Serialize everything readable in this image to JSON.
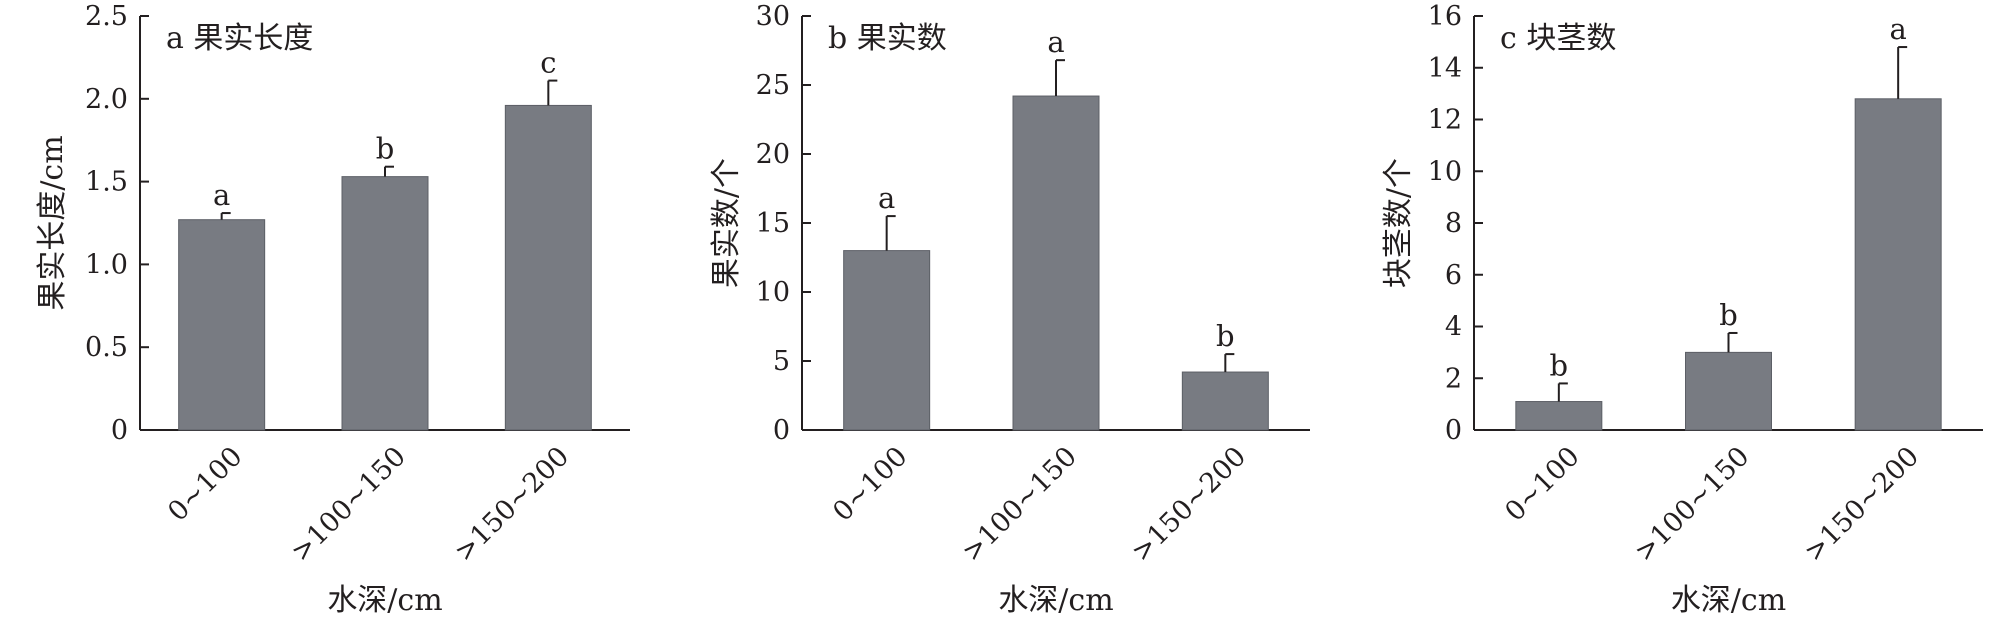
{
  "colors": {
    "bar": "#787b82",
    "axis": "#231f20"
  },
  "chart_data": [
    {
      "type": "bar",
      "title": "a 果实长度",
      "xlabel": "水深/cm",
      "ylabel": "果实长度/cm",
      "categories": [
        "0~100",
        ">100~150",
        ">150~200"
      ],
      "values": [
        1.27,
        1.53,
        1.96
      ],
      "errors": [
        0.04,
        0.06,
        0.15
      ],
      "significance": [
        "a",
        "b",
        "c"
      ],
      "ylim": [
        0,
        2.5
      ],
      "yticks": [
        0,
        0.5,
        1.0,
        1.5,
        2.0,
        2.5
      ],
      "ytick_labels": [
        "0",
        "0.5",
        "1.0",
        "1.5",
        "2.0",
        "2.5"
      ]
    },
    {
      "type": "bar",
      "title": "b 果实数",
      "xlabel": "水深/cm",
      "ylabel": "果实数/个",
      "categories": [
        "0~100",
        ">100~150",
        ">150~200"
      ],
      "values": [
        13.0,
        24.2,
        4.2
      ],
      "errors": [
        2.5,
        2.6,
        1.3
      ],
      "significance": [
        "a",
        "a",
        "b"
      ],
      "ylim": [
        0,
        30
      ],
      "yticks": [
        0,
        5,
        10,
        15,
        20,
        25,
        30
      ],
      "ytick_labels": [
        "0",
        "5",
        "10",
        "15",
        "20",
        "25",
        "30"
      ]
    },
    {
      "type": "bar",
      "title": "c 块茎数",
      "xlabel": "水深/cm",
      "ylabel": "块茎数/个",
      "categories": [
        "0~100",
        ">100~150",
        ">150~200"
      ],
      "values": [
        1.1,
        3.0,
        12.8
      ],
      "errors": [
        0.7,
        0.75,
        2.0
      ],
      "significance": [
        "b",
        "b",
        "a"
      ],
      "ylim": [
        0,
        16
      ],
      "yticks": [
        0,
        2,
        4,
        6,
        8,
        10,
        12,
        14,
        16
      ],
      "ytick_labels": [
        "0",
        "2",
        "4",
        "6",
        "8",
        "10",
        "12",
        "14",
        "16"
      ]
    }
  ]
}
